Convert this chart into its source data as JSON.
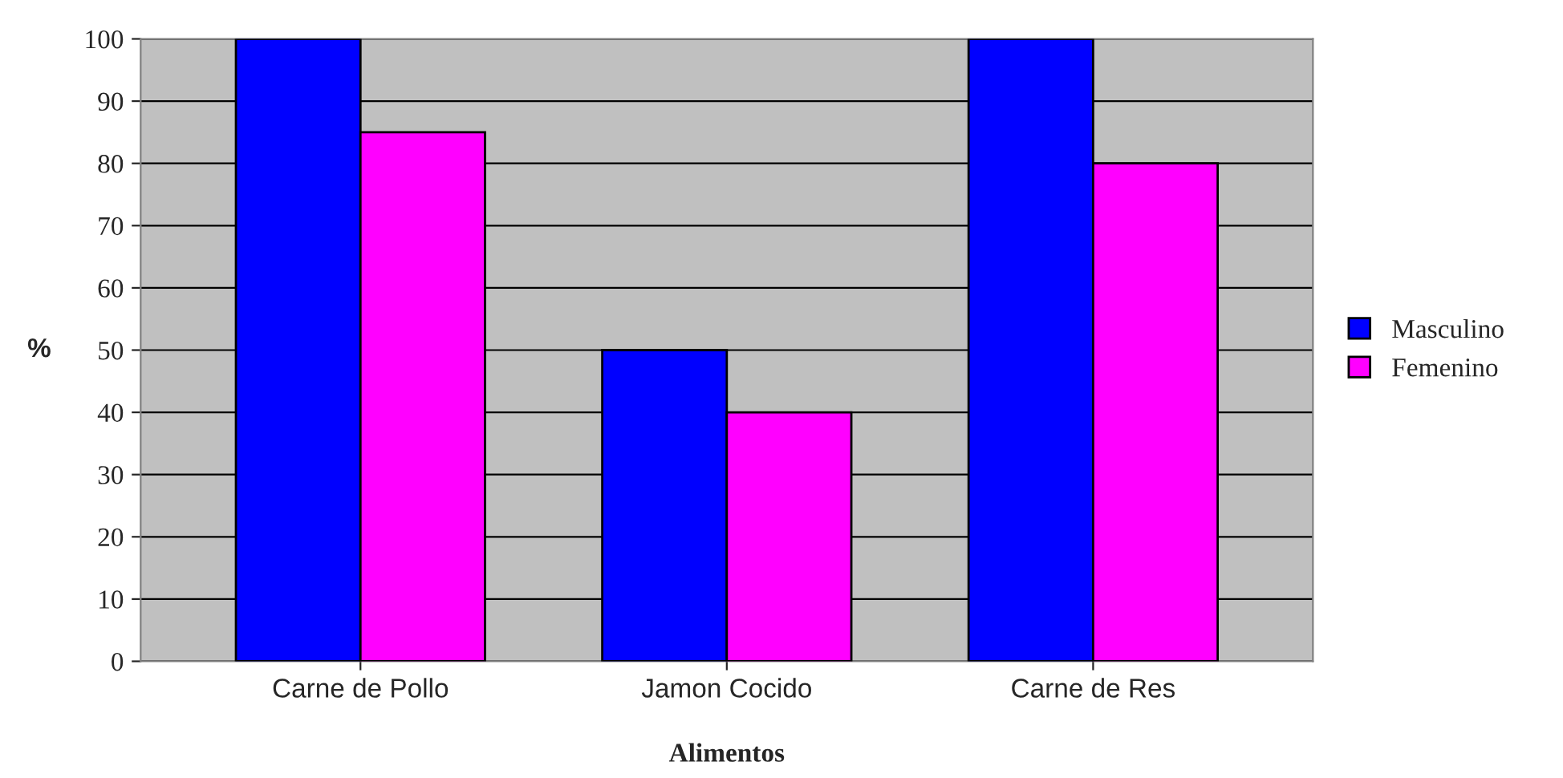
{
  "chart_data": {
    "type": "bar",
    "xlabel": "Alimentos",
    "ylabel": "%",
    "categories": [
      "Carne de Pollo",
      "Jamon Cocido",
      "Carne de Res"
    ],
    "series": [
      {
        "name": "Masculino",
        "color": "#0000ff",
        "values": [
          100,
          50,
          100
        ]
      },
      {
        "name": "Femenino",
        "color": "#ff00ff",
        "values": [
          85,
          40,
          80
        ]
      }
    ],
    "ylim": [
      0,
      100
    ],
    "yticks": [
      0,
      10,
      20,
      30,
      40,
      50,
      60,
      70,
      80,
      90,
      100
    ],
    "grid": "y",
    "legend": "right"
  }
}
